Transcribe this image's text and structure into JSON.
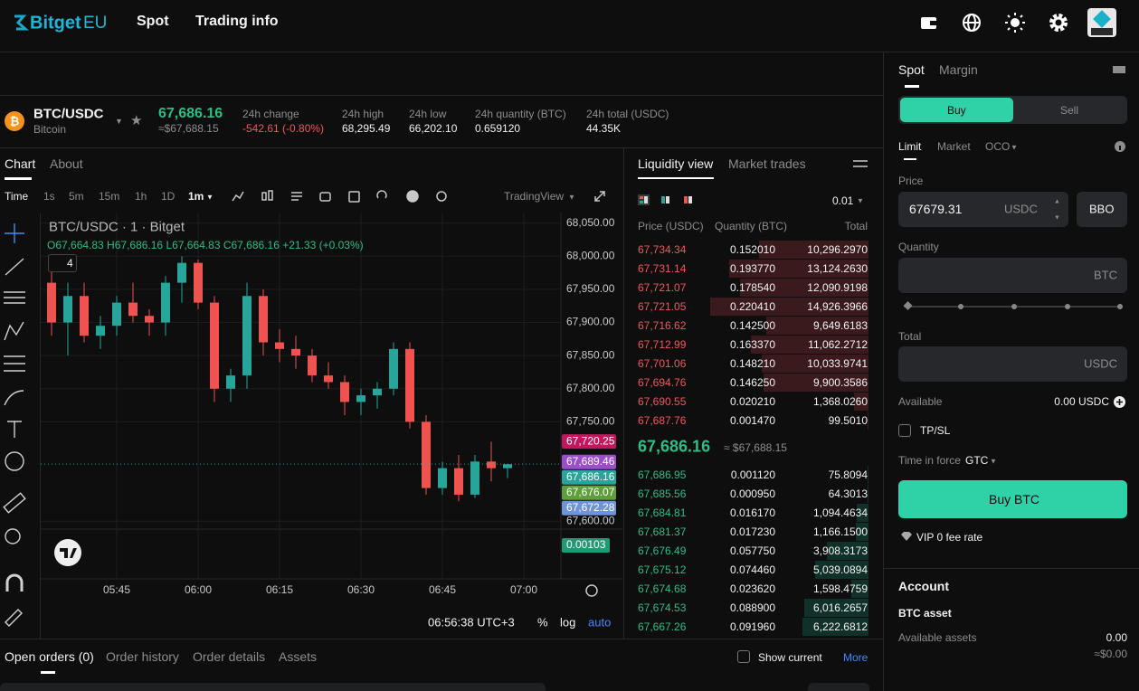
{
  "header": {
    "logo": "Bitget",
    "logo_region": "EU",
    "nav": [
      "Spot",
      "Trading info"
    ]
  },
  "ticker": {
    "pair": "BTC/USDC",
    "name": "Bitcoin",
    "price": "67,686.16",
    "price_usd": "≈$67,688.15",
    "stats": [
      {
        "label": "24h change",
        "value": "-542.61 (-0.80%)"
      },
      {
        "label": "24h high",
        "value": "68,295.49"
      },
      {
        "label": "24h low",
        "value": "66,202.10"
      },
      {
        "label": "24h quantity (BTC)",
        "value": "0.659120"
      },
      {
        "label": "24h total (USDC)",
        "value": "44.35K"
      }
    ]
  },
  "chart_tabs": [
    "Chart",
    "About"
  ],
  "intervals": [
    "Time",
    "1s",
    "5m",
    "15m",
    "1h",
    "1D",
    "1m"
  ],
  "chart_provider": "TradingView",
  "chart_legend": {
    "title": "BTC/USDC · 1 · Bitget",
    "ohlc": "O67,664.83 H67,686.16 L67,664.83 C67,686.16 +21.33 (+0.03%)",
    "indicators": "4"
  },
  "chart_data": {
    "type": "candlestick",
    "x": [
      "05:33",
      "05:36",
      "05:39",
      "05:42",
      "05:45",
      "05:48",
      "05:51",
      "05:54",
      "05:57",
      "06:00",
      "06:03",
      "06:06",
      "06:09",
      "06:12",
      "06:15",
      "06:18",
      "06:21",
      "06:24",
      "06:27",
      "06:30",
      "06:33",
      "06:36",
      "06:39",
      "06:42",
      "06:45",
      "06:48",
      "06:51",
      "06:54",
      "06:57"
    ],
    "open": [
      67960,
      67900,
      67940,
      67880,
      67895,
      67930,
      67910,
      67900,
      67960,
      67990,
      67930,
      67800,
      67820,
      67940,
      67870,
      67860,
      67850,
      67820,
      67810,
      67780,
      67790,
      67800,
      67860,
      67750,
      67650,
      67680,
      67640,
      67690,
      67680
    ],
    "high": [
      67985,
      67960,
      67960,
      67910,
      67940,
      67960,
      67920,
      67970,
      68000,
      67995,
      67940,
      67830,
      67960,
      67950,
      67890,
      67880,
      67860,
      67840,
      67820,
      67800,
      67810,
      67870,
      67870,
      67760,
      67690,
      67700,
      67700,
      67720,
      67686
    ],
    "low": [
      67880,
      67850,
      67870,
      67860,
      67880,
      67900,
      67880,
      67880,
      67930,
      67920,
      67780,
      67780,
      67800,
      67850,
      67840,
      67830,
      67810,
      67800,
      67760,
      67760,
      67770,
      67790,
      67740,
      67640,
      67640,
      67630,
      67635,
      67660,
      67665
    ],
    "close": [
      67900,
      67940,
      67880,
      67895,
      67930,
      67910,
      67900,
      67960,
      67990,
      67930,
      67800,
      67820,
      67940,
      67870,
      67860,
      67850,
      67820,
      67810,
      67780,
      67790,
      67800,
      67860,
      67750,
      67650,
      67680,
      67640,
      67690,
      67680,
      67686
    ],
    "ylim": [
      67588,
      68066
    ],
    "yticks": [
      {
        "value": 68050,
        "label": "68,050.00"
      },
      {
        "value": 68000,
        "label": "68,000.00"
      },
      {
        "value": 67950,
        "label": "67,950.00"
      },
      {
        "value": 67900,
        "label": "67,900.00"
      },
      {
        "value": 67850,
        "label": "67,850.00"
      },
      {
        "value": 67800,
        "label": "67,800.00"
      },
      {
        "value": 67750,
        "label": "67,750.00"
      },
      {
        "value": 67600,
        "label": "67,600.00"
      }
    ],
    "xticks": [
      "05:45",
      "06:00",
      "06:15",
      "06:30",
      "06:45",
      "07:00"
    ],
    "grid": true,
    "price_tags": [
      {
        "value": 67720.25,
        "label": "67,720.25",
        "color": "#c2185b"
      },
      {
        "value": 67689.46,
        "label": "67,689.46",
        "color": "#9c4dcc"
      },
      {
        "value": 67686.16,
        "label": "67,686.16",
        "color": "#26a69a"
      },
      {
        "value": 67676.07,
        "label": "67,676.07",
        "color": "#5f9e3c"
      },
      {
        "value": 67672.28,
        "label": "67,672.28",
        "color": "#6f93d8"
      }
    ],
    "up_color": "#26a69a",
    "down_color": "#ef5350",
    "volume_label": "0.00103"
  },
  "chart_footer": {
    "time": "06:56:38 UTC+3",
    "percent": "%",
    "log": "log",
    "auto": "auto"
  },
  "orderbook": {
    "tabs": [
      "Liquidity view",
      "Market trades"
    ],
    "precision": "0.01",
    "columns": [
      "Price (USDC)",
      "Quantity (BTC)",
      "Total"
    ],
    "asks": [
      [
        "67,734.34",
        "0.152010",
        "10,296.2970"
      ],
      [
        "67,731.14",
        "0.193770",
        "13,124.2630"
      ],
      [
        "67,721.07",
        "0.178540",
        "12,090.9198"
      ],
      [
        "67,721.05",
        "0.220410",
        "14,926.3966"
      ],
      [
        "67,716.62",
        "0.142500",
        "9,649.6183"
      ],
      [
        "67,712.99",
        "0.163370",
        "11,062.2712"
      ],
      [
        "67,701.06",
        "0.148210",
        "10,033.9741"
      ],
      [
        "67,694.76",
        "0.146250",
        "9,900.3586"
      ],
      [
        "67,690.55",
        "0.020210",
        "1,368.0260"
      ],
      [
        "67,687.76",
        "0.001470",
        "99.5010"
      ]
    ],
    "last_price": "67,686.16",
    "last_price_usd": "≈ $67,688.15",
    "bids": [
      [
        "67,686.95",
        "0.001120",
        "75.8094"
      ],
      [
        "67,685.56",
        "0.000950",
        "64.3013"
      ],
      [
        "67,684.81",
        "0.016170",
        "1,094.4634"
      ],
      [
        "67,681.37",
        "0.017230",
        "1,166.1500"
      ],
      [
        "67,676.49",
        "0.057750",
        "3,908.3173"
      ],
      [
        "67,675.12",
        "0.074460",
        "5,039.0894"
      ],
      [
        "67,674.68",
        "0.023620",
        "1,598.4759"
      ],
      [
        "67,674.53",
        "0.088900",
        "6,016.2657"
      ],
      [
        "67,667.26",
        "0.091960",
        "6,222.6812"
      ]
    ]
  },
  "order_form": {
    "tabs": [
      "Spot",
      "Margin"
    ],
    "sides": [
      "Buy",
      "Sell"
    ],
    "order_types": [
      "Limit",
      "Market",
      "OCO"
    ],
    "price_label": "Price",
    "price": "67679.31",
    "price_unit": "USDC",
    "bbo": "BBO",
    "quantity_label": "Quantity",
    "quantity_unit": "BTC",
    "total_label": "Total",
    "total_unit": "USDC",
    "available_label": "Available",
    "available": "0.00 USDC",
    "tpsl": "TP/SL",
    "time_in_force_label": "Time in force",
    "time_in_force": "GTC",
    "submit": "Buy BTC",
    "fee": "VIP 0 fee rate"
  },
  "account": {
    "title": "Account",
    "asset": "BTC asset",
    "available_label": "Available assets",
    "available": "0.00",
    "available_usd": "≈$0.00"
  },
  "bottom": {
    "tabs": [
      "Open orders (0)",
      "Order history",
      "Order details",
      "Assets"
    ],
    "show_current": "Show current",
    "more": "More"
  }
}
